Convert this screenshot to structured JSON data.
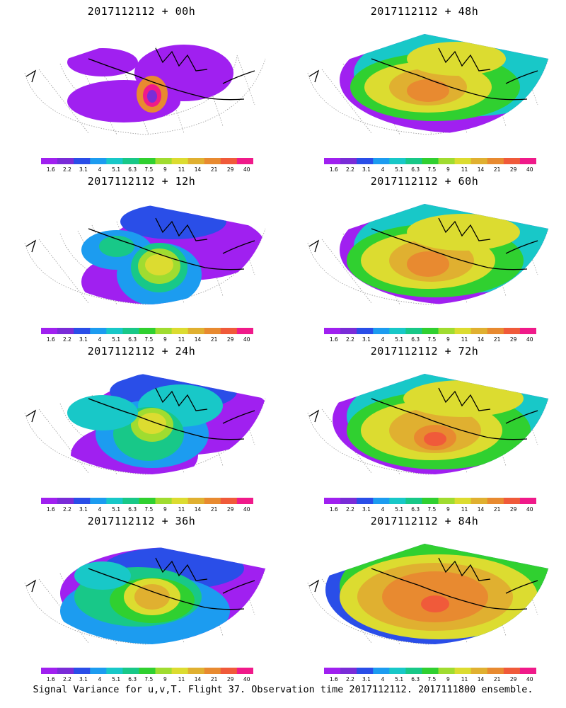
{
  "figure": {
    "caption": "Signal Variance for u,v,T. Flight 37. Observation time 2017112112. 2017111800 ensemble."
  },
  "colorbar": {
    "labels": [
      "1.6",
      "2.2",
      "3.1",
      "4",
      "5.1",
      "6.3",
      "7.5",
      "9",
      "11",
      "14",
      "21",
      "29",
      "40"
    ],
    "colors": [
      "#a020f0",
      "#7a2cd8",
      "#2a4ee8",
      "#1c9cf0",
      "#18c8c8",
      "#18c888",
      "#30d030",
      "#a0dc30",
      "#dcdc30",
      "#e0b030",
      "#e88a30",
      "#f05a3a",
      "#f01a8a"
    ]
  },
  "chart_data": [
    {
      "type": "heatmap",
      "title": "2017112112 + 00h",
      "forecast_hour": 0
    },
    {
      "type": "heatmap",
      "title": "2017112112 + 48h",
      "forecast_hour": 48
    },
    {
      "type": "heatmap",
      "title": "2017112112 + 12h",
      "forecast_hour": 12
    },
    {
      "type": "heatmap",
      "title": "2017112112 + 60h",
      "forecast_hour": 60
    },
    {
      "type": "heatmap",
      "title": "2017112112 + 24h",
      "forecast_hour": 24
    },
    {
      "type": "heatmap",
      "title": "2017112112 + 72h",
      "forecast_hour": 72
    },
    {
      "type": "heatmap",
      "title": "2017112112 + 36h",
      "forecast_hour": 36
    },
    {
      "type": "heatmap",
      "title": "2017112112 + 84h",
      "forecast_hour": 84
    }
  ]
}
